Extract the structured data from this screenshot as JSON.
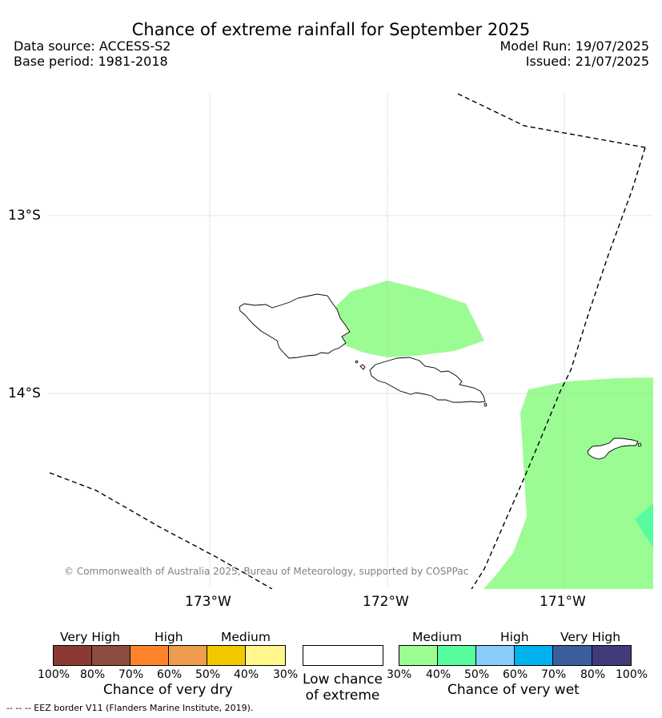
{
  "header": {
    "title": "Chance of extreme rainfall for September 2025",
    "data_source": "Data source: ACCESS-S2",
    "base_period": "Base period: 1981-2018",
    "model_run": "Model Run: 19/07/2025",
    "issued": "Issued: 21/07/2025"
  },
  "map": {
    "lat_labels": [
      "13°S",
      "14°S"
    ],
    "lon_labels": [
      "173°W",
      "172°W",
      "171°W"
    ],
    "copyright": "© Commonwealth of Australia 2025, Bureau of Meteorology, supported by COSPPac",
    "eez_legend": "--  --  -- EEZ border V11 (Flanders Marine Institute, 2019).",
    "colors": {
      "medium_wet": "#9cfc94",
      "high_wet_40_50": "#57fc9f",
      "eez_line": "#000000",
      "grid": "#b0b0b0"
    }
  },
  "legend": {
    "dry": {
      "categories": [
        "Very High",
        "High",
        "Medium"
      ],
      "ticks": [
        "100%",
        "80%",
        "70%",
        "60%",
        "50%",
        "40%",
        "30%"
      ],
      "colors": [
        "#8b3a33",
        "#8b4e3e",
        "#fd842a",
        "#ee9c4e",
        "#f0c800",
        "#fff68c"
      ],
      "label": "Chance of very dry"
    },
    "neutral": {
      "label": "Low chance of extreme",
      "color": "#ffffff"
    },
    "wet": {
      "categories": [
        "Medium",
        "High",
        "Very High"
      ],
      "ticks": [
        "30%",
        "40%",
        "50%",
        "60%",
        "70%",
        "80%",
        "100%"
      ],
      "colors": [
        "#9cfc94",
        "#57fc9f",
        "#88cdfa",
        "#00b2ed",
        "#3b5f9c",
        "#423b7a"
      ],
      "label": "Chance of very wet"
    }
  }
}
